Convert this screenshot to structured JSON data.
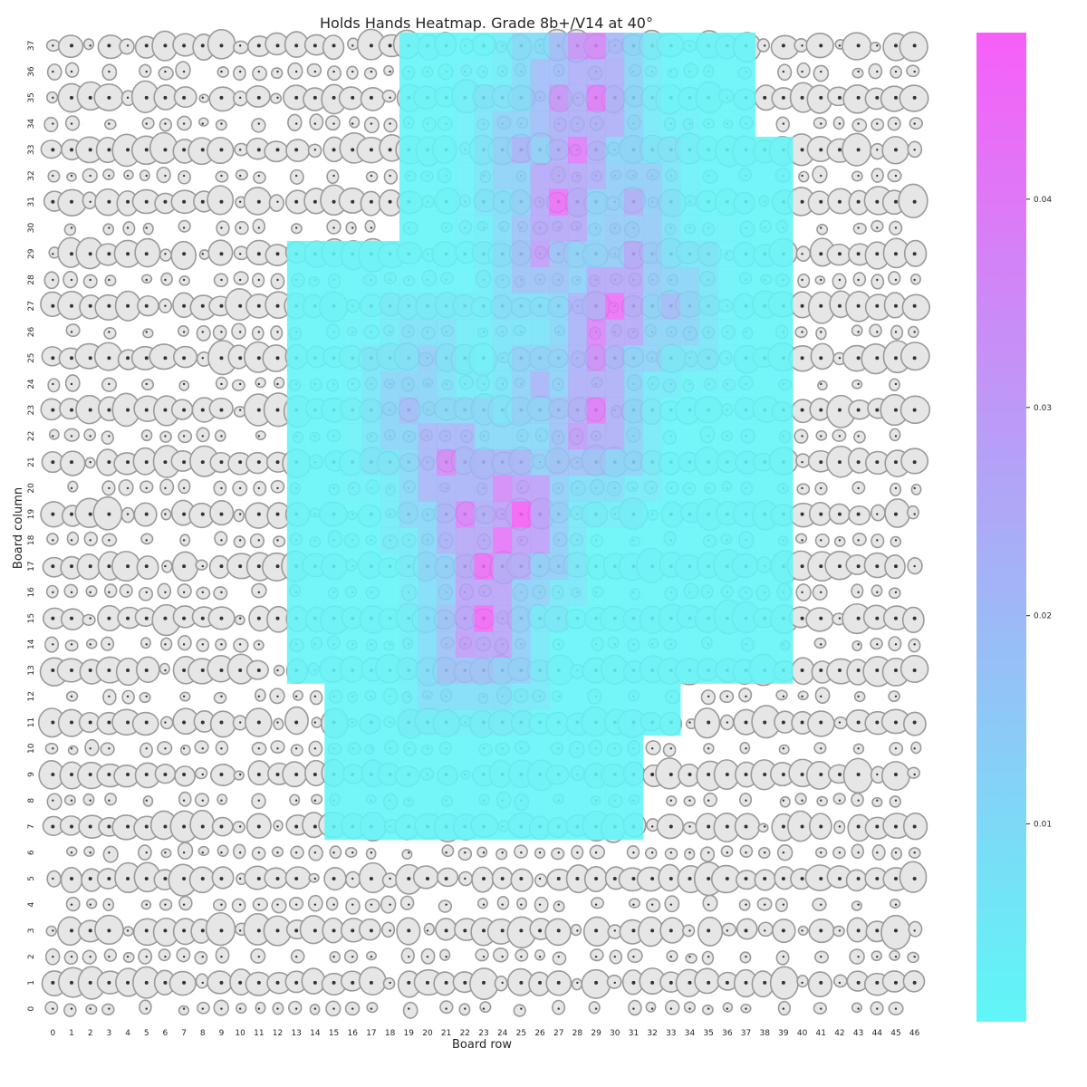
{
  "chart_data": {
    "type": "heatmap",
    "title": "Holds Hands Heatmap. Grade 8b+/V14 at 40°",
    "xlabel": "Board row",
    "ylabel": "Board column",
    "x_ticks": [
      "0",
      "1",
      "2",
      "3",
      "4",
      "5",
      "6",
      "7",
      "8",
      "9",
      "10",
      "11",
      "12",
      "13",
      "14",
      "15",
      "16",
      "17",
      "18",
      "19",
      "20",
      "21",
      "22",
      "23",
      "24",
      "25",
      "26",
      "27",
      "28",
      "29",
      "30",
      "31",
      "32",
      "33",
      "34",
      "35",
      "36",
      "37",
      "38",
      "39",
      "40",
      "41",
      "42",
      "43",
      "44",
      "45",
      "46"
    ],
    "y_ticks": [
      "0",
      "1",
      "2",
      "3",
      "4",
      "5",
      "6",
      "7",
      "8",
      "9",
      "10",
      "11",
      "12",
      "13",
      "14",
      "15",
      "16",
      "17",
      "18",
      "19",
      "20",
      "21",
      "22",
      "23",
      "24",
      "25",
      "26",
      "27",
      "28",
      "29",
      "30",
      "31",
      "32",
      "33",
      "34",
      "35",
      "36",
      "37"
    ],
    "colorbar": {
      "ticks": [
        "0.01",
        "0.02",
        "0.03",
        "0.04"
      ],
      "tick_values": [
        0.01,
        0.02,
        0.03,
        0.04
      ],
      "min": 0.0005,
      "max": 0.048,
      "color_low": "#5ff7f7",
      "color_high": "#f75ff7"
    },
    "grid": false,
    "hot_spots": [
      {
        "x": 25,
        "y": 19,
        "value": 0.048
      },
      {
        "x": 24,
        "y": 18,
        "value": 0.042
      },
      {
        "x": 23,
        "y": 17,
        "value": 0.044
      },
      {
        "x": 23,
        "y": 15,
        "value": 0.046
      },
      {
        "x": 22,
        "y": 19,
        "value": 0.038
      },
      {
        "x": 21,
        "y": 21,
        "value": 0.036
      },
      {
        "x": 24,
        "y": 20,
        "value": 0.036
      },
      {
        "x": 22,
        "y": 14,
        "value": 0.03
      },
      {
        "x": 29,
        "y": 23,
        "value": 0.04
      },
      {
        "x": 30,
        "y": 27,
        "value": 0.044
      },
      {
        "x": 29,
        "y": 26,
        "value": 0.038
      },
      {
        "x": 29,
        "y": 25,
        "value": 0.034
      },
      {
        "x": 28,
        "y": 22,
        "value": 0.03
      },
      {
        "x": 27,
        "y": 31,
        "value": 0.044
      },
      {
        "x": 28,
        "y": 33,
        "value": 0.04
      },
      {
        "x": 29,
        "y": 35,
        "value": 0.04
      },
      {
        "x": 27,
        "y": 35,
        "value": 0.032
      },
      {
        "x": 29,
        "y": 37,
        "value": 0.036
      },
      {
        "x": 28,
        "y": 37,
        "value": 0.032
      },
      {
        "x": 31,
        "y": 29,
        "value": 0.026
      },
      {
        "x": 26,
        "y": 29,
        "value": 0.03
      },
      {
        "x": 31,
        "y": 31,
        "value": 0.024
      },
      {
        "x": 33,
        "y": 27,
        "value": 0.02
      },
      {
        "x": 19,
        "y": 23,
        "value": 0.02
      },
      {
        "x": 20,
        "y": 25,
        "value": 0.014
      },
      {
        "x": 26,
        "y": 24,
        "value": 0.022
      },
      {
        "x": 25,
        "y": 33,
        "value": 0.022
      }
    ],
    "coverage": [
      {
        "x0": 13,
        "x1": 39,
        "y0": 13,
        "y1": 29,
        "value": 0.001
      },
      {
        "x0": 19,
        "x1": 37,
        "y0": 34,
        "y1": 37,
        "value": 0.001
      },
      {
        "x0": 19,
        "x1": 39,
        "y0": 30,
        "y1": 33,
        "value": 0.001
      },
      {
        "x0": 15,
        "x1": 37,
        "y0": 15,
        "y1": 19,
        "value": 0.001
      },
      {
        "x0": 15,
        "x1": 33,
        "y0": 11,
        "y1": 14,
        "value": 0.001
      },
      {
        "x0": 15,
        "x1": 31,
        "y0": 7,
        "y1": 10,
        "value": 0.001
      }
    ]
  }
}
